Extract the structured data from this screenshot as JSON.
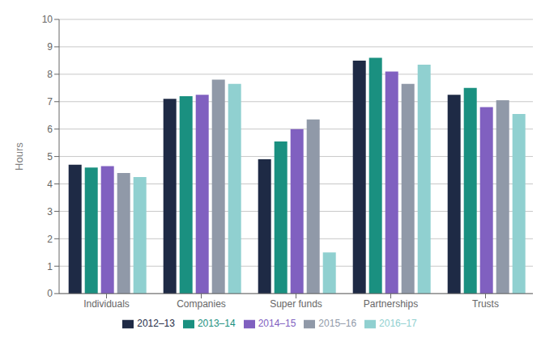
{
  "chart_data": {
    "type": "bar",
    "categories": [
      "Individuals",
      "Companies",
      "Super funds",
      "Partnerships",
      "Trusts"
    ],
    "series": [
      {
        "name": "2012–13",
        "color": "#1e2a45",
        "values": [
          4.7,
          7.1,
          4.9,
          8.5,
          7.25
        ]
      },
      {
        "name": "2013–14",
        "color": "#1a9080",
        "values": [
          4.6,
          7.2,
          5.55,
          8.6,
          7.5
        ]
      },
      {
        "name": "2014–15",
        "color": "#8060c0",
        "values": [
          4.65,
          7.25,
          6.0,
          8.1,
          6.8
        ]
      },
      {
        "name": "2015–16",
        "color": "#9099a8",
        "values": [
          4.4,
          7.8,
          6.35,
          7.65,
          7.05
        ]
      },
      {
        "name": "2016–17",
        "color": "#90d0d0",
        "values": [
          4.25,
          7.65,
          1.5,
          8.35,
          6.55
        ]
      }
    ],
    "ylabel": "Hours",
    "ylim": [
      0,
      10
    ],
    "yticks": [
      0,
      1,
      2,
      3,
      4,
      5,
      6,
      7,
      8,
      9,
      10
    ],
    "grid": true,
    "legend": "bottom"
  }
}
